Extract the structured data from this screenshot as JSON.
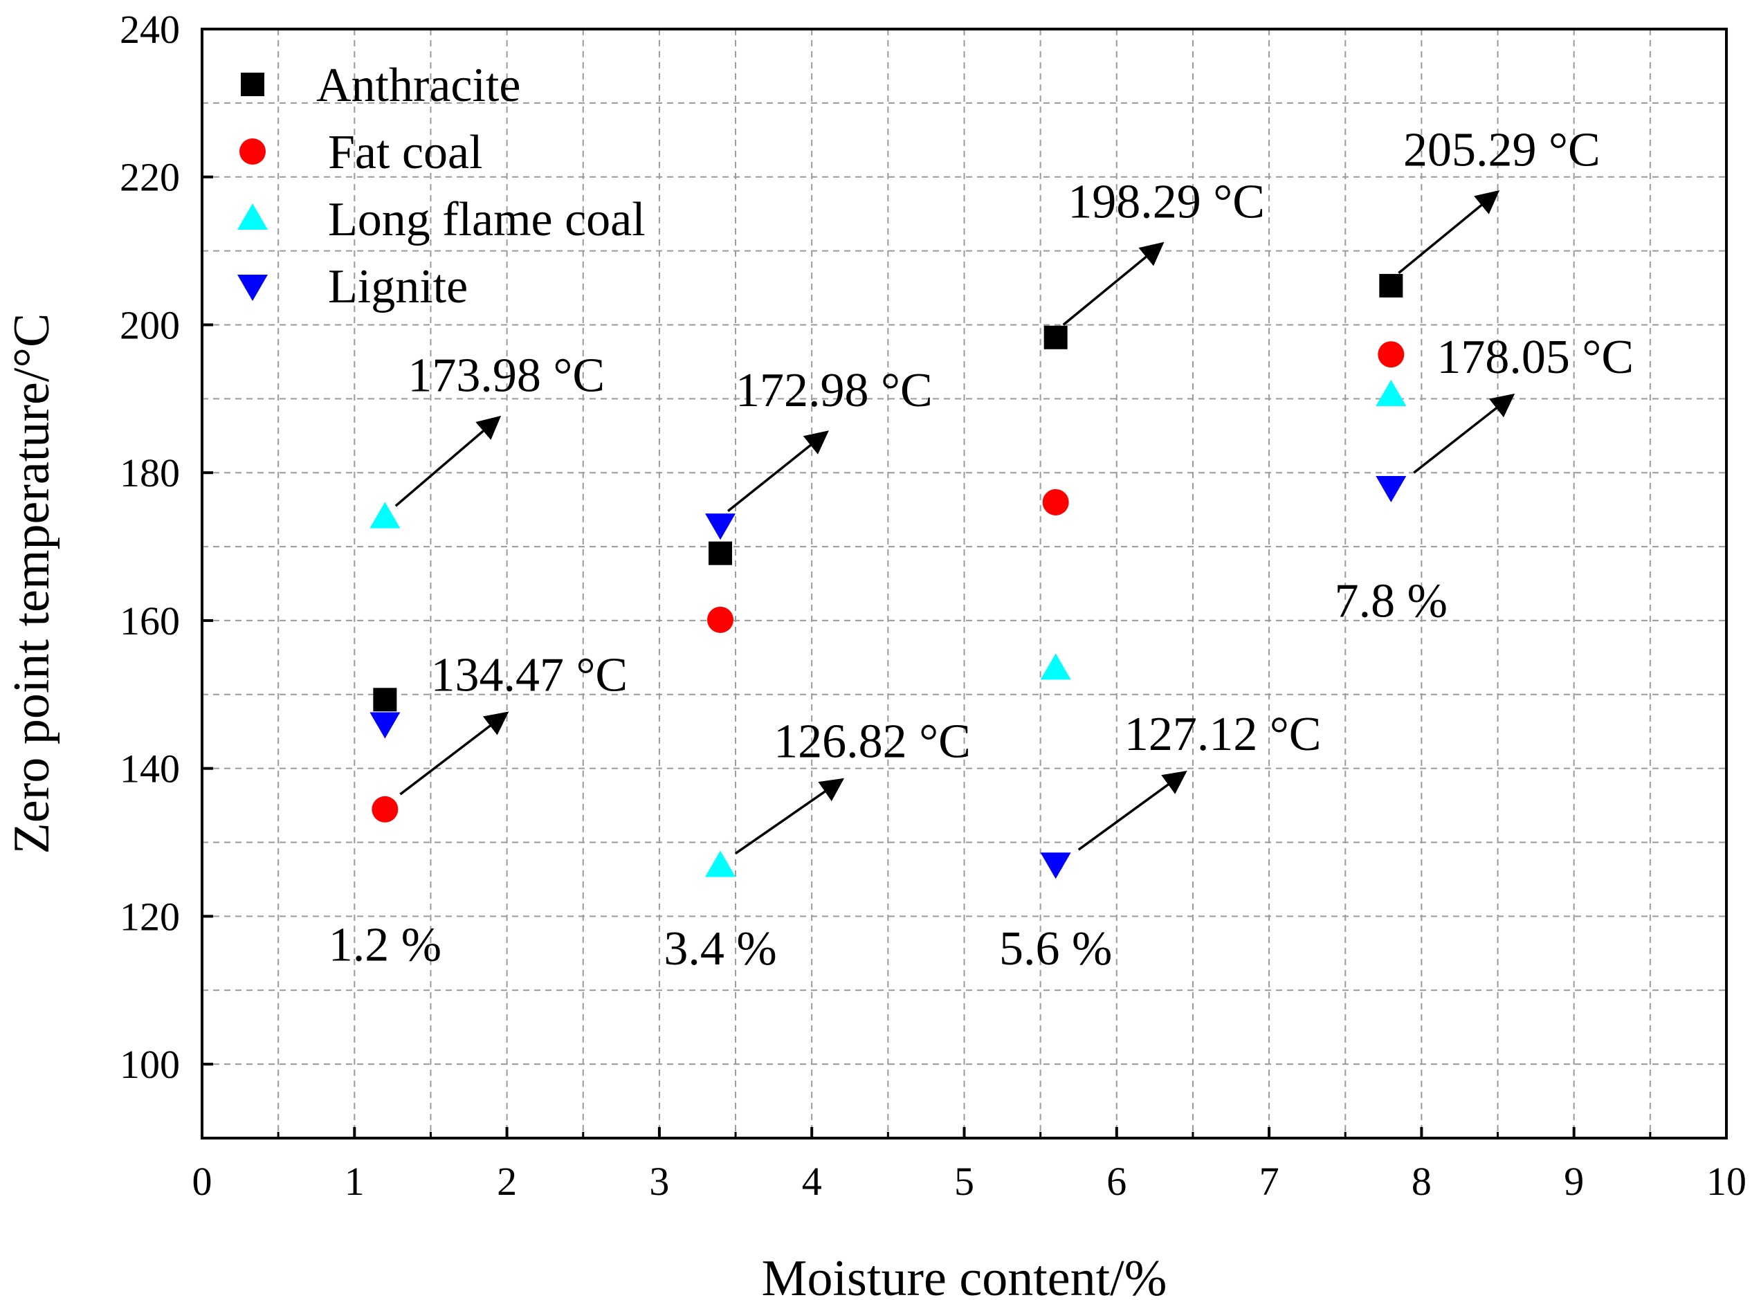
{
  "chart_data": {
    "type": "scatter",
    "title": "",
    "xlabel": "Moisture content/%",
    "ylabel": "Zero point temperature/°C",
    "xlim": [
      0,
      10
    ],
    "ylim": [
      90,
      240
    ],
    "x_ticks": [
      0,
      1,
      2,
      3,
      4,
      5,
      6,
      7,
      8,
      9,
      10
    ],
    "y_ticks": [
      100,
      120,
      140,
      160,
      180,
      200,
      220,
      240
    ],
    "x_tick_labels": [
      "0",
      "1",
      "2",
      "3",
      "4",
      "5",
      "6",
      "7",
      "8",
      "9",
      "10"
    ],
    "y_tick_labels": [
      "100",
      "120",
      "140",
      "160",
      "180",
      "200",
      "220",
      "240"
    ],
    "grid": true,
    "legend_position": "top-left",
    "series": [
      {
        "name": "Anthracite",
        "marker": "square",
        "color": "#000000",
        "x": [
          1.2,
          3.4,
          5.6,
          7.8
        ],
        "y": [
          149.3,
          169.1,
          198.29,
          205.29
        ]
      },
      {
        "name": "Fat coal",
        "marker": "circle",
        "color": "#ff0000",
        "x": [
          1.2,
          3.4,
          5.6,
          7.8
        ],
        "y": [
          134.47,
          160.1,
          176.0,
          196.0
        ]
      },
      {
        "name": "Long flame coal",
        "marker": "triangle-up",
        "color": "#00ffff",
        "x": [
          1.2,
          3.4,
          5.6,
          7.8
        ],
        "y": [
          173.98,
          126.82,
          153.5,
          190.5
        ]
      },
      {
        "name": "Lignite",
        "marker": "triangle-down",
        "color": "#0000ff",
        "x": [
          1.2,
          3.4,
          5.6,
          7.8
        ],
        "y": [
          146.1,
          172.98,
          127.12,
          178.05
        ]
      }
    ],
    "annotations": [
      {
        "text": "173.98 °C",
        "from": [
          1.27,
          175.5
        ],
        "to": [
          1.95,
          187.5
        ],
        "label_at": [
          1.35,
          191.0
        ]
      },
      {
        "text": "172.98 °C",
        "from": [
          3.45,
          174.8
        ],
        "to": [
          4.1,
          185.5
        ],
        "label_at": [
          3.5,
          189.0
        ]
      },
      {
        "text": "198.29 °C",
        "from": [
          5.65,
          200.0
        ],
        "to": [
          6.3,
          211.0
        ],
        "label_at": [
          5.68,
          214.5
        ]
      },
      {
        "text": "205.29 °C",
        "from": [
          7.85,
          207.0
        ],
        "to": [
          8.5,
          218.0
        ],
        "label_at": [
          7.88,
          221.5
        ]
      },
      {
        "text": "134.47 °C",
        "from": [
          1.3,
          136.5
        ],
        "to": [
          2.0,
          147.5
        ],
        "label_at": [
          1.5,
          150.5
        ]
      },
      {
        "text": "126.82 °C",
        "from": [
          3.5,
          128.5
        ],
        "to": [
          4.2,
          138.5
        ],
        "label_at": [
          3.75,
          141.5
        ]
      },
      {
        "text": "127.12 °C",
        "from": [
          5.75,
          129.0
        ],
        "to": [
          6.45,
          139.5
        ],
        "label_at": [
          6.05,
          142.5
        ]
      },
      {
        "text": "178.05 °C",
        "from": [
          7.95,
          180.0
        ],
        "to": [
          8.6,
          190.5
        ],
        "label_at": [
          8.1,
          193.5
        ]
      }
    ],
    "group_labels": [
      {
        "text": "1.2 %",
        "at": [
          1.2,
          114.0
        ]
      },
      {
        "text": "3.4 %",
        "at": [
          3.4,
          113.5
        ]
      },
      {
        "text": "5.6 %",
        "at": [
          5.6,
          113.5
        ]
      },
      {
        "text": "7.8 %",
        "at": [
          7.8,
          160.5
        ]
      }
    ]
  }
}
